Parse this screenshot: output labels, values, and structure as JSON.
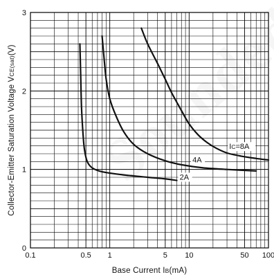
{
  "chart_data": {
    "type": "line",
    "title": "",
    "xlabel": "Base Current I",
    "xlabel_sub": "B",
    "xlabel_unit": "(mA)",
    "ylabel": "Collector-Emitter Saturation Voltage V",
    "ylabel_sub": "CE(sat)",
    "ylabel_unit": "(V)",
    "x_scale": "log",
    "xlim": [
      0.1,
      100
    ],
    "ylim": [
      0,
      3
    ],
    "grid": true,
    "x_ticks": [
      {
        "value": 0.1,
        "label": "0.1"
      },
      {
        "value": 0.5,
        "label": "0.5"
      },
      {
        "value": 1,
        "label": "1"
      },
      {
        "value": 5,
        "label": "5"
      },
      {
        "value": 10,
        "label": "10"
      },
      {
        "value": 50,
        "label": "50"
      },
      {
        "value": 100,
        "label": "100"
      }
    ],
    "y_ticks": [
      {
        "value": 0,
        "label": "0"
      },
      {
        "value": 1,
        "label": "1"
      },
      {
        "value": 2,
        "label": "2"
      },
      {
        "value": 3,
        "label": "3"
      }
    ],
    "series": [
      {
        "name": "2A",
        "label_at": {
          "x": 7.6,
          "y": 0.87
        },
        "points": [
          [
            0.42,
            2.6
          ],
          [
            0.43,
            2.2
          ],
          [
            0.44,
            1.8
          ],
          [
            0.46,
            1.45
          ],
          [
            0.48,
            1.25
          ],
          [
            0.52,
            1.1
          ],
          [
            0.6,
            1.02
          ],
          [
            0.8,
            0.97
          ],
          [
            1.5,
            0.93
          ],
          [
            3,
            0.9
          ],
          [
            5,
            0.88
          ],
          [
            7,
            0.86
          ]
        ]
      },
      {
        "name": "4A",
        "label_at": {
          "x": 11,
          "y": 1.09
        },
        "points": [
          [
            0.8,
            2.7
          ],
          [
            0.85,
            2.4
          ],
          [
            0.9,
            2.15
          ],
          [
            1,
            1.9
          ],
          [
            1.2,
            1.68
          ],
          [
            1.5,
            1.48
          ],
          [
            2,
            1.32
          ],
          [
            3,
            1.2
          ],
          [
            5,
            1.11
          ],
          [
            8,
            1.06
          ],
          [
            15,
            1.02
          ],
          [
            30,
            1.0
          ],
          [
            70,
            0.98
          ]
        ]
      },
      {
        "name": "IC=8A",
        "label_text": "I",
        "label_sub": "C",
        "label_rest": "=8A",
        "label_at": {
          "x": 32,
          "y": 1.26
        },
        "points": [
          [
            2.5,
            2.8
          ],
          [
            3,
            2.6
          ],
          [
            4,
            2.35
          ],
          [
            5,
            2.15
          ],
          [
            6,
            1.98
          ],
          [
            8,
            1.75
          ],
          [
            10,
            1.58
          ],
          [
            13,
            1.44
          ],
          [
            17,
            1.34
          ],
          [
            22,
            1.27
          ],
          [
            30,
            1.21
          ],
          [
            45,
            1.17
          ],
          [
            70,
            1.14
          ],
          [
            100,
            1.12
          ]
        ]
      }
    ],
    "line_color": "#111111"
  },
  "watermark": {
    "text": "Sounded for Y"
  }
}
